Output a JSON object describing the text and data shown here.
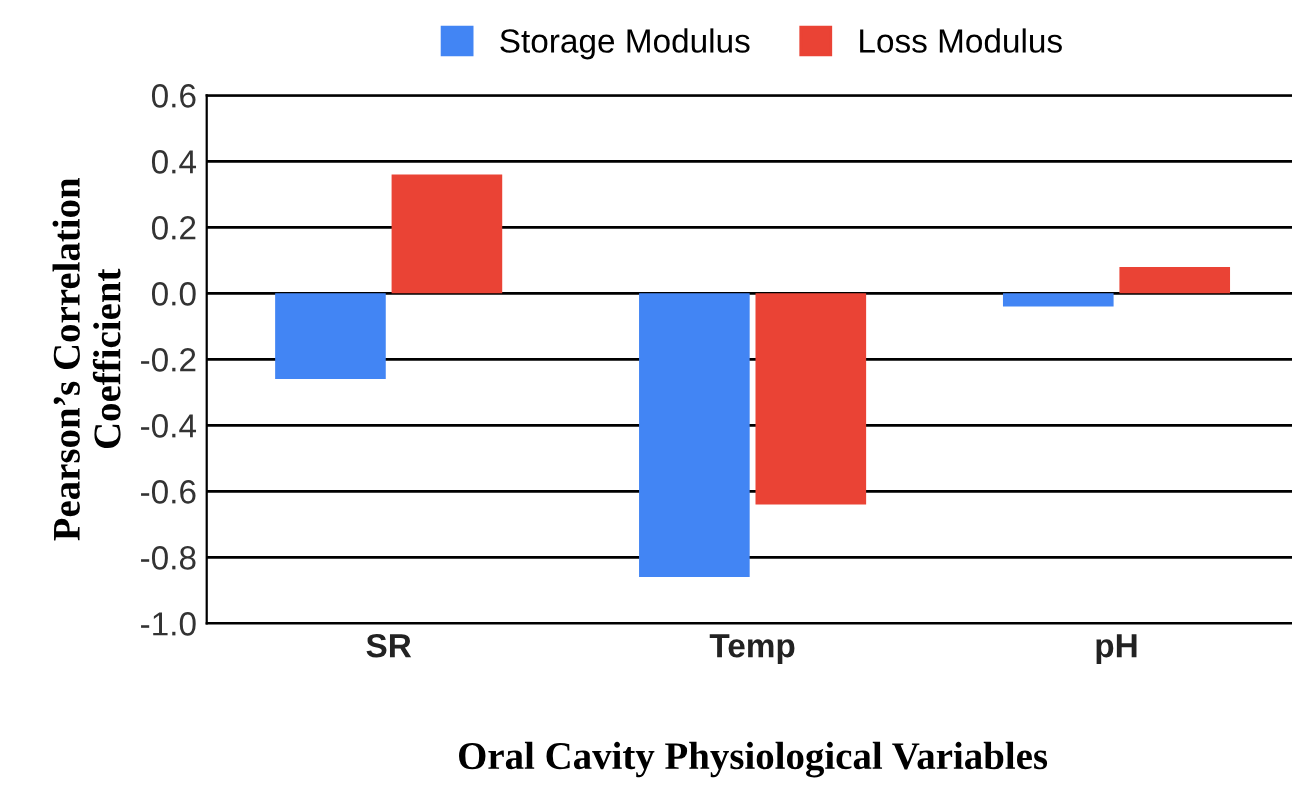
{
  "chart_data": {
    "type": "bar",
    "xlabel": "Oral Cavity Physiological Variables",
    "ylabel": "Pearson’s Correlation\nCoefficient",
    "categories": [
      "SR",
      "Temp",
      "pH"
    ],
    "series": [
      {
        "name": "Storage Modulus",
        "color": "#4285f4",
        "values": [
          -0.26,
          -0.86,
          -0.04
        ]
      },
      {
        "name": "Loss Modulus",
        "color": "#ea4335",
        "values": [
          0.36,
          -0.64,
          0.08
        ]
      }
    ],
    "ylim": [
      -1.0,
      0.6
    ],
    "yticks": [
      {
        "value": -1.0,
        "label": "-1.0"
      },
      {
        "value": -0.8,
        "label": "-0.8"
      },
      {
        "value": -0.6,
        "label": "-0.6"
      },
      {
        "value": -0.4,
        "label": "-0.4"
      },
      {
        "value": -0.2,
        "label": "-0.2"
      },
      {
        "value": 0.0,
        "label": "0.0"
      },
      {
        "value": 0.2,
        "label": "0.2"
      },
      {
        "value": 0.4,
        "label": "0.4"
      },
      {
        "value": 0.6,
        "label": "0.6"
      }
    ],
    "grid": "y",
    "legend": "top"
  }
}
